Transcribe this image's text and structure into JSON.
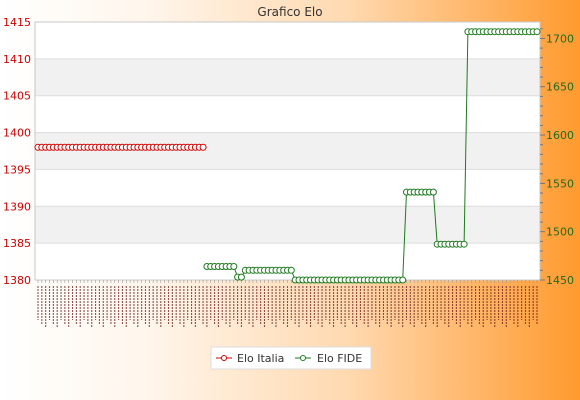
{
  "chart_data": {
    "type": "line",
    "title": "Grafico Elo",
    "x_tick_labels_legible": false,
    "x_tick_label_color": "#6a1a1a",
    "grid": true,
    "legend_placement": "bottom-center",
    "y_left": {
      "ticks": [
        1380,
        1385,
        1390,
        1395,
        1400,
        1405,
        1410,
        1415
      ],
      "ylim": [
        1380,
        1415
      ],
      "color": "#cc0000"
    },
    "y_right": {
      "ticks": [
        1450,
        1500,
        1550,
        1600,
        1650,
        1700
      ],
      "ylim": [
        1450,
        1717
      ],
      "color": "#1e6b1e"
    },
    "series": [
      {
        "name": "Elo Italia",
        "axis": "left",
        "color": "#cc0000",
        "segments": [
          {
            "x_start": 0,
            "x_end": 43,
            "value": 1398
          }
        ]
      },
      {
        "name": "Elo FIDE",
        "axis": "right",
        "color": "#1e7a1e",
        "segments": [
          {
            "x_start": 44,
            "x_end": 51,
            "value": 1464
          },
          {
            "x_start": 52,
            "x_end": 53,
            "value": 1453
          },
          {
            "x_start": 54,
            "x_end": 66,
            "value": 1460
          },
          {
            "x_start": 67,
            "x_end": 95,
            "value": 1450
          },
          {
            "x_start": 96,
            "x_end": 103,
            "value": 1541
          },
          {
            "x_start": 104,
            "x_end": 111,
            "value": 1487
          },
          {
            "x_start": 112,
            "x_end": 130,
            "value": 1707
          }
        ]
      }
    ],
    "x_count": 131
  }
}
